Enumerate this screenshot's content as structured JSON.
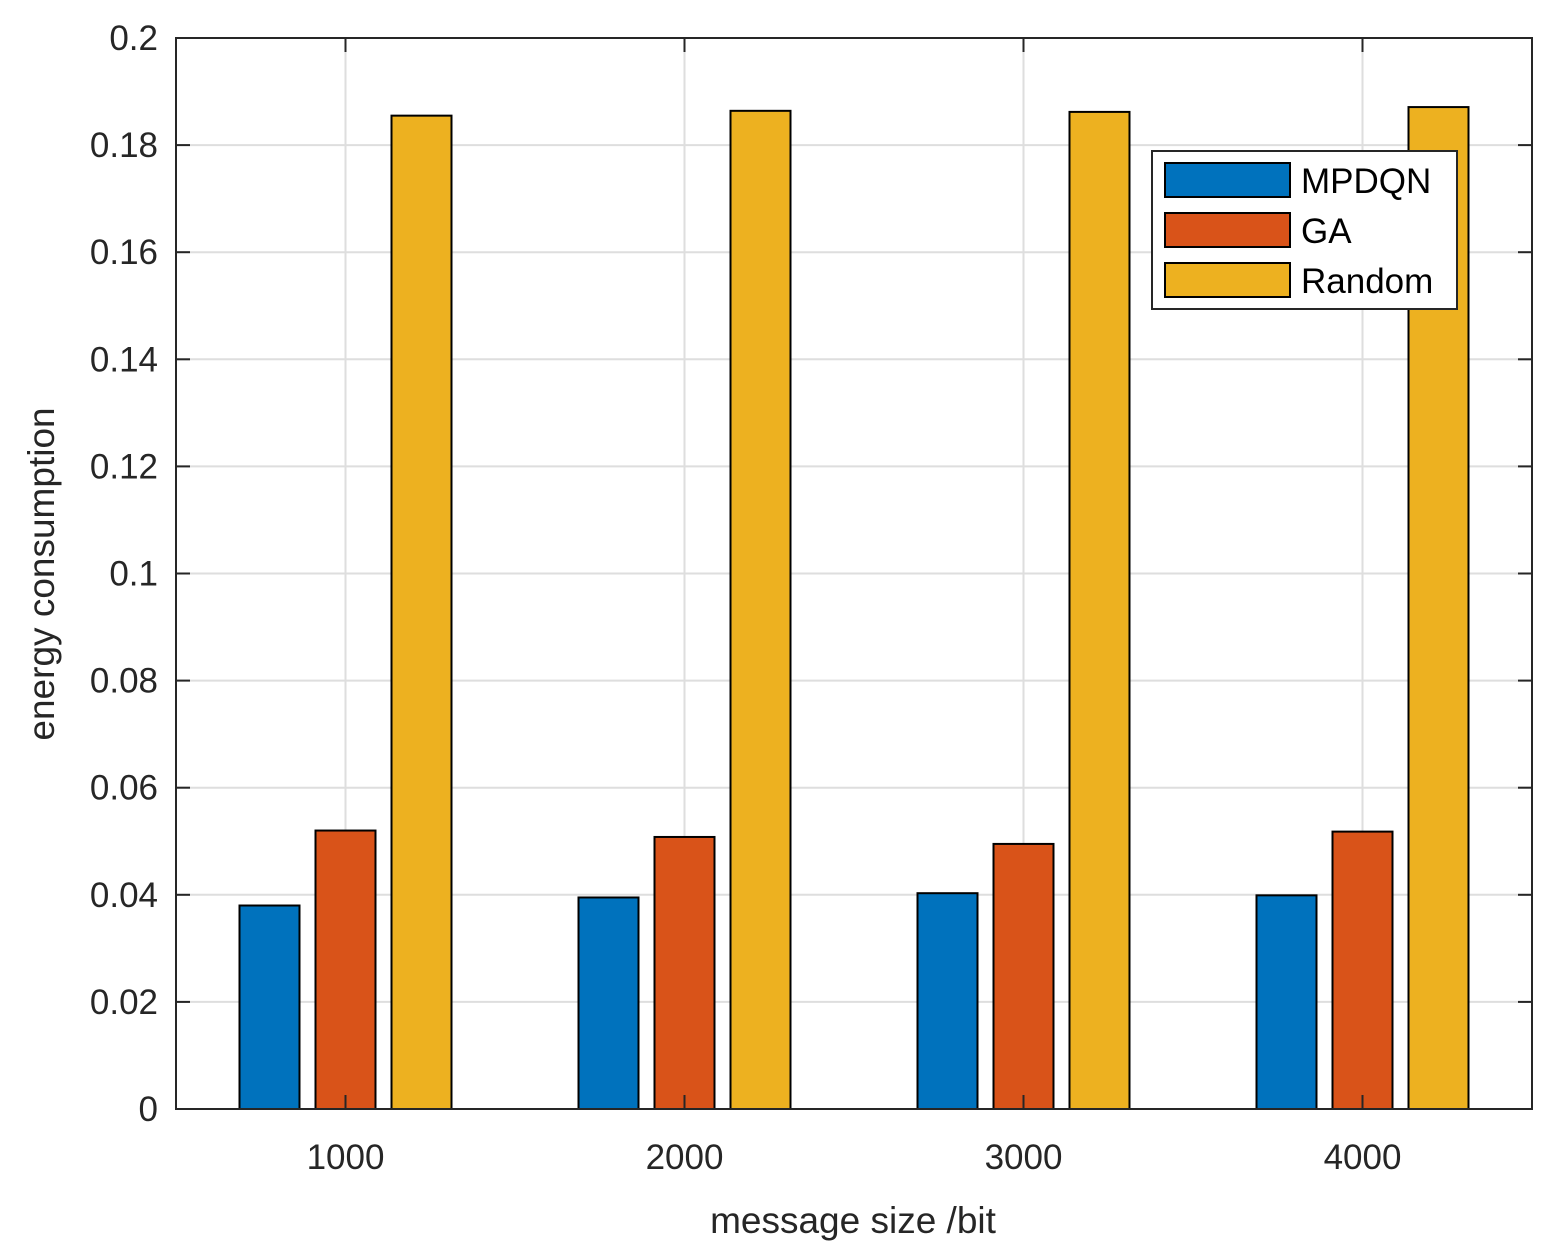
{
  "chart_data": {
    "type": "bar",
    "title": "",
    "xlabel": "message size /bit",
    "ylabel": "energy consumption",
    "categories": [
      "1000",
      "2000",
      "3000",
      "4000"
    ],
    "ylim": [
      0,
      0.2
    ],
    "yticks": [
      "0",
      "0.02",
      "0.04",
      "0.06",
      "0.08",
      "0.1",
      "0.12",
      "0.14",
      "0.16",
      "0.18",
      "0.2"
    ],
    "ytick_values": [
      0,
      0.02,
      0.04,
      0.06,
      0.08,
      0.1,
      0.12,
      0.14,
      0.16,
      0.18,
      0.2
    ],
    "grid": true,
    "legend_position": "top-right",
    "series": [
      {
        "name": "MPDQN",
        "color": "#0072BD",
        "values": [
          0.038,
          0.0395,
          0.0403,
          0.0399
        ]
      },
      {
        "name": "GA",
        "color": "#D95319",
        "values": [
          0.052,
          0.0508,
          0.0495,
          0.0518
        ]
      },
      {
        "name": "Random",
        "color": "#EDB120",
        "values": [
          0.1855,
          0.1864,
          0.1862,
          0.1871
        ]
      }
    ]
  }
}
